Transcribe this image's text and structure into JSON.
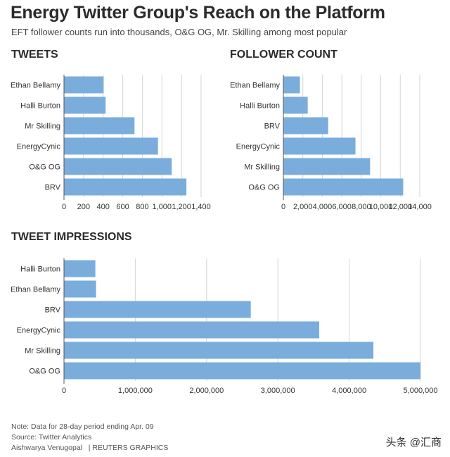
{
  "header": {
    "title": "Energy Twitter Group's Reach on the Platform",
    "subtitle": "EFT follower counts run into thousands, O&G OG, Mr. Skilling among most popular"
  },
  "chart_data": [
    {
      "type": "bar",
      "orientation": "horizontal",
      "title": "TWEETS",
      "categories": [
        "Ethan Bellamy",
        "Halli Burton",
        "Mr Skilling",
        "EnergyCynic",
        "O&G OG",
        "BRV"
      ],
      "values": [
        405,
        425,
        720,
        960,
        1100,
        1250
      ],
      "xlim": [
        0,
        1400
      ],
      "ticks": [
        0,
        200,
        400,
        600,
        800,
        1000,
        1200,
        1400
      ],
      "tick_labels": [
        "0",
        "200",
        "400",
        "600",
        "800",
        "1,000",
        "1,200",
        "1,400"
      ],
      "color": "#7aaddc",
      "grid": true
    },
    {
      "type": "bar",
      "orientation": "horizontal",
      "title": "FOLLOWER COUNT",
      "categories": [
        "Ethan Bellamy",
        "Halli Burton",
        "BRV",
        "EnergyCynic",
        "Mr Skilling",
        "O&G OG"
      ],
      "values": [
        1700,
        2500,
        4600,
        7400,
        8900,
        12300
      ],
      "xlim": [
        0,
        14000
      ],
      "ticks": [
        0,
        2000,
        4000,
        6000,
        8000,
        10000,
        12000,
        14000
      ],
      "tick_labels": [
        "0",
        "2,000",
        "4,000",
        "6,000",
        "8,000",
        "10,000",
        "12,000",
        "14,000"
      ],
      "color": "#7aaddc",
      "grid": true
    },
    {
      "type": "bar",
      "orientation": "horizontal",
      "title": "TWEET IMPRESSIONS",
      "categories": [
        "Halli Burton",
        "Ethan Bellamy",
        "BRV",
        "EnergyCynic",
        "Mr Skilling",
        "O&G OG"
      ],
      "values": [
        440000,
        450000,
        2620000,
        3580000,
        4340000,
        5000000
      ],
      "xlim": [
        0,
        5000000
      ],
      "ticks": [
        0,
        1000000,
        2000000,
        3000000,
        4000000,
        5000000
      ],
      "tick_labels": [
        "0",
        "1,000,000",
        "2,000,000",
        "3,000,000",
        "4,000,000",
        "5,000,000"
      ],
      "color": "#7aaddc",
      "grid": true
    }
  ],
  "footer": {
    "note": "Note: Data for 28-day period ending Apr. 09",
    "source": "Source: Twitter Analytics",
    "author": "Aishwarya Venugopal",
    "credit": "| REUTERS GRAPHICS"
  },
  "watermark": "头条 @汇商"
}
